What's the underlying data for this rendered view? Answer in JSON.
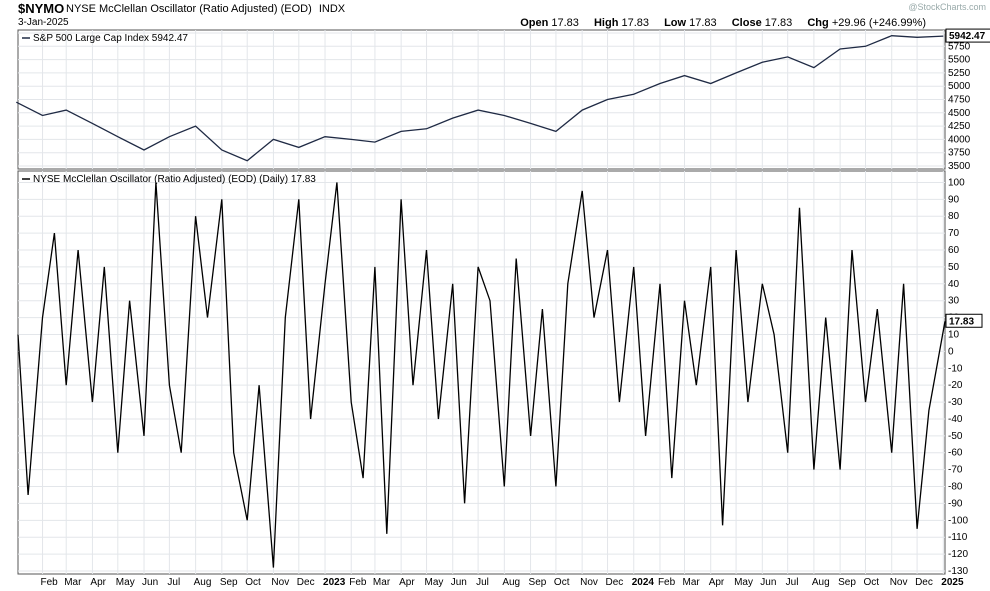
{
  "header": {
    "symbol": "$NYMO",
    "title": "NYSE McClellan Oscillator (Ratio Adjusted) (EOD)",
    "exchange": "INDX",
    "date": "3-Jan-2025",
    "watermark": "@StockCharts.com",
    "open_label": "Open",
    "open": "17.83",
    "high_label": "High",
    "high": "17.83",
    "low_label": "Low",
    "low": "17.83",
    "close_label": "Close",
    "close": "17.83",
    "chg_label": "Chg",
    "chg": "+29.96 (+246.99%)"
  },
  "chart_data": [
    {
      "type": "line",
      "title": "S&P 500 Large Cap Index 5942.47",
      "last_value_label": "5942.47",
      "series": [
        {
          "name": "S&P 500 Large Cap Index",
          "color": "#1f2a44",
          "x": [
            "2022-01",
            "2022-02",
            "2022-03",
            "2022-04",
            "2022-05",
            "2022-06",
            "2022-07",
            "2022-08",
            "2022-09",
            "2022-10",
            "2022-11",
            "2022-12",
            "2023-01",
            "2023-02",
            "2023-03",
            "2023-04",
            "2023-05",
            "2023-06",
            "2023-07",
            "2023-08",
            "2023-09",
            "2023-10",
            "2023-11",
            "2023-12",
            "2024-01",
            "2024-02",
            "2024-03",
            "2024-04",
            "2024-05",
            "2024-06",
            "2024-07",
            "2024-08",
            "2024-09",
            "2024-10",
            "2024-11",
            "2024-12",
            "2025-01"
          ],
          "values": [
            4700,
            4450,
            4550,
            4300,
            4050,
            3800,
            4050,
            4250,
            3800,
            3600,
            4000,
            3850,
            4050,
            4000,
            3950,
            4150,
            4200,
            4400,
            4550,
            4450,
            4300,
            4150,
            4550,
            4750,
            4850,
            5050,
            5200,
            5050,
            5250,
            5450,
            5550,
            5350,
            5700,
            5750,
            5950,
            5920,
            5942
          ]
        }
      ],
      "ylim": [
        3500,
        6000
      ],
      "y_ticks": [
        3500,
        3750,
        4000,
        4250,
        4500,
        4750,
        5000,
        5250,
        5500,
        5750,
        6000
      ]
    },
    {
      "type": "line",
      "title": "NYSE McClellan Oscillator (Ratio Adjusted) (EOD) (Daily) 17.83",
      "last_value_label": "17.83",
      "series": [
        {
          "name": "NYSE McClellan Oscillator (Ratio Adjusted)",
          "color": "#000000",
          "x": [
            "2022-01-03",
            "2022-01-15",
            "2022-02-01",
            "2022-02-15",
            "2022-03-01",
            "2022-03-15",
            "2022-04-01",
            "2022-04-15",
            "2022-05-01",
            "2022-05-15",
            "2022-06-01",
            "2022-06-15",
            "2022-07-01",
            "2022-07-15",
            "2022-08-01",
            "2022-08-15",
            "2022-09-01",
            "2022-09-15",
            "2022-10-01",
            "2022-10-15",
            "2022-11-01",
            "2022-11-15",
            "2022-12-01",
            "2022-12-15",
            "2023-01-01",
            "2023-01-15",
            "2023-02-01",
            "2023-02-15",
            "2023-03-01",
            "2023-03-15",
            "2023-04-01",
            "2023-04-15",
            "2023-05-01",
            "2023-05-15",
            "2023-06-01",
            "2023-06-15",
            "2023-07-01",
            "2023-07-15",
            "2023-08-01",
            "2023-08-15",
            "2023-09-01",
            "2023-09-15",
            "2023-10-01",
            "2023-10-15",
            "2023-11-01",
            "2023-11-15",
            "2023-12-01",
            "2023-12-15",
            "2024-01-01",
            "2024-01-15",
            "2024-02-01",
            "2024-02-15",
            "2024-03-01",
            "2024-03-15",
            "2024-04-01",
            "2024-04-15",
            "2024-05-01",
            "2024-05-15",
            "2024-06-01",
            "2024-06-15",
            "2024-07-01",
            "2024-07-15",
            "2024-08-01",
            "2024-08-15",
            "2024-09-01",
            "2024-09-15",
            "2024-10-01",
            "2024-10-15",
            "2024-11-01",
            "2024-11-15",
            "2024-12-01",
            "2024-12-15",
            "2025-01-03"
          ],
          "values": [
            10,
            -85,
            20,
            70,
            -20,
            60,
            -30,
            50,
            -60,
            30,
            -50,
            100,
            -20,
            -60,
            80,
            20,
            90,
            -60,
            -100,
            -20,
            -128,
            20,
            90,
            -40,
            40,
            100,
            -30,
            -75,
            50,
            -108,
            90,
            -20,
            60,
            -40,
            40,
            -90,
            50,
            30,
            -80,
            55,
            -50,
            25,
            -80,
            40,
            95,
            20,
            60,
            -30,
            50,
            -50,
            40,
            -75,
            30,
            -20,
            50,
            -103,
            60,
            -30,
            40,
            10,
            -60,
            85,
            -70,
            20,
            -70,
            60,
            -30,
            25,
            -60,
            40,
            -105,
            -35,
            17.83
          ]
        }
      ],
      "ylim": [
        -130,
        105
      ],
      "y_ticks": [
        -130,
        -120,
        -110,
        -100,
        -90,
        -80,
        -70,
        -60,
        -50,
        -40,
        -30,
        -20,
        -10,
        0,
        10,
        20,
        30,
        40,
        50,
        60,
        70,
        80,
        90,
        100
      ]
    }
  ],
  "x_axis": {
    "labels": [
      "Feb",
      "Mar",
      "Apr",
      "May",
      "Jun",
      "Jul",
      "Aug",
      "Sep",
      "Oct",
      "Nov",
      "Dec",
      "2023",
      "Feb",
      "Mar",
      "Apr",
      "May",
      "Jun",
      "Jul",
      "Aug",
      "Sep",
      "Oct",
      "Nov",
      "Dec",
      "2024",
      "Feb",
      "Mar",
      "Apr",
      "May",
      "Jun",
      "Jul",
      "Aug",
      "Sep",
      "Oct",
      "Nov",
      "Dec",
      "2025"
    ]
  }
}
